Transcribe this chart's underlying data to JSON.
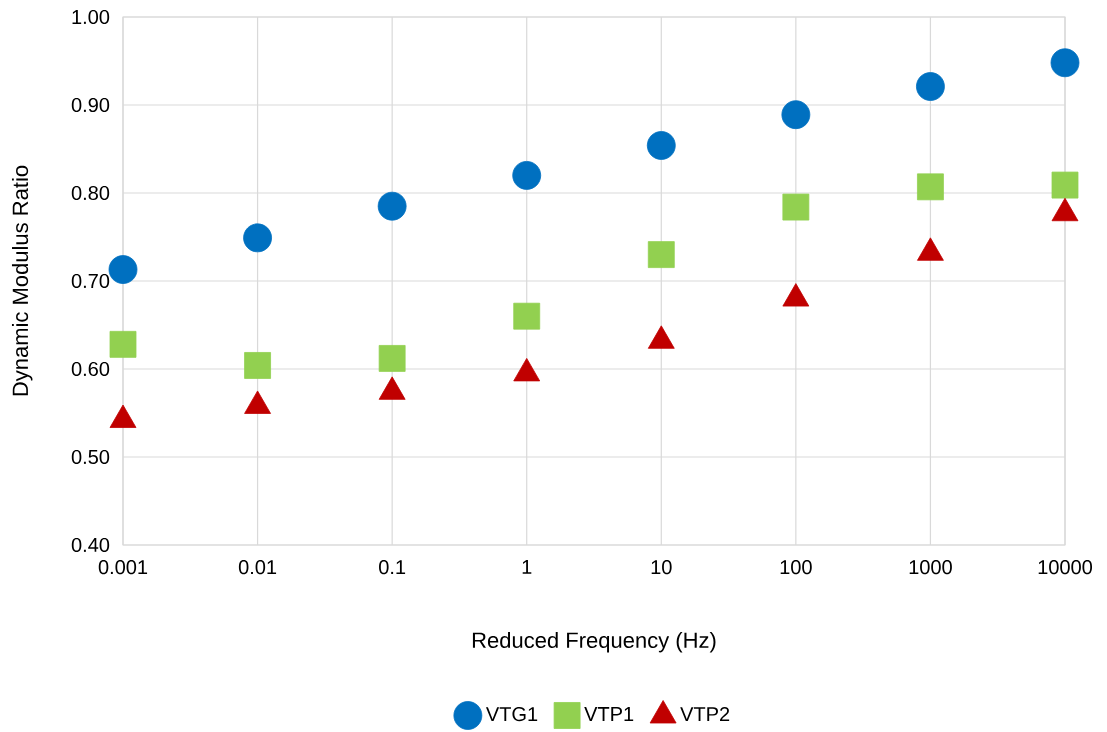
{
  "chart_data": {
    "type": "scatter",
    "xlabel": "Reduced Frequency (Hz)",
    "ylabel": "Dynamic Modulus Ratio",
    "log": "x",
    "x": [
      0.001,
      0.01,
      0.1,
      1,
      10,
      100,
      1000,
      10000
    ],
    "xlim": [
      0.001,
      10000
    ],
    "xticks": [
      0.001,
      0.01,
      0.1,
      1,
      10,
      100,
      1000,
      10000
    ],
    "ylim": [
      0.4,
      1.0
    ],
    "yticks": [
      {
        "value": 0.4,
        "label": "0.40"
      },
      {
        "value": 0.5,
        "label": "0.50"
      },
      {
        "value": 0.6,
        "label": "0.60"
      },
      {
        "value": 0.7,
        "label": "0.70"
      },
      {
        "value": 0.8,
        "label": "0.80"
      },
      {
        "value": 0.9,
        "label": "0.90"
      },
      {
        "value": 1.0,
        "label": "1.00"
      }
    ],
    "grid": true,
    "legend": "bottom",
    "series": [
      {
        "name": "VTG1",
        "color": "#0070c0",
        "marker": "circle",
        "values": [
          0.713,
          0.749,
          0.785,
          0.82,
          0.854,
          0.889,
          0.921,
          0.948
        ]
      },
      {
        "name": "VTP1",
        "color": "#92d050",
        "marker": "square",
        "values": [
          0.628,
          0.604,
          0.612,
          0.66,
          0.73,
          0.784,
          0.807,
          0.809
        ]
      },
      {
        "name": "VTP2",
        "color": "#c00000",
        "marker": "triangle",
        "values": [
          0.542,
          0.558,
          0.574,
          0.595,
          0.632,
          0.68,
          0.732,
          0.777
        ]
      }
    ]
  }
}
